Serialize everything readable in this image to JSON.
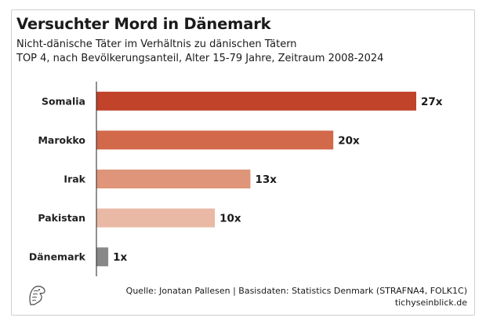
{
  "title": "Versuchter Mord in Dänemark",
  "subtitle_line1": "Nicht-dänische Täter im Verhältnis zu dänischen Tätern",
  "subtitle_line2": "TOP 4, nach Bevölkerungsanteil, Alter 15-79 Jahre, Zeitraum 2008-2024",
  "source": "Quelle: Jonatan Pallesen | Basisdaten: Statistics Denmark (STRAFNA4, FOLK1C)",
  "website": "tichyseinblick.de",
  "logo_icon": "eagle-head-logo",
  "chart_data": {
    "type": "bar",
    "orientation": "horizontal",
    "categories": [
      "Somalia",
      "Marokko",
      "Irak",
      "Pakistan",
      "Dänemark"
    ],
    "values": [
      27,
      20,
      13,
      10,
      1
    ],
    "value_labels": [
      "27x",
      "20x",
      "13x",
      "10x",
      "1x"
    ],
    "colors": [
      "#c0432a",
      "#d2694a",
      "#df957a",
      "#e9b9a6",
      "#888888"
    ],
    "xlim": [
      0,
      27
    ],
    "grid": false,
    "legend": "none"
  }
}
